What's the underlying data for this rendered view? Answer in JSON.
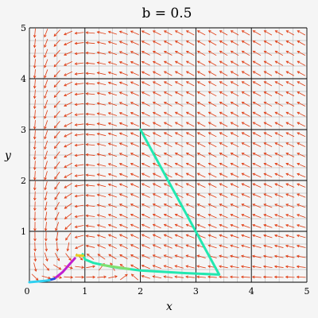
{
  "chart_data": {
    "type": "line",
    "title": "b = 0.5",
    "xlabel": "x",
    "ylabel": "y",
    "xlim": [
      0,
      5
    ],
    "ylim": [
      0,
      5
    ],
    "grid": true,
    "x_ticks": [
      "0",
      "1",
      "2",
      "3",
      "4",
      "5"
    ],
    "y_ticks": [
      "1",
      "2",
      "3",
      "4",
      "5"
    ],
    "b": 0.5,
    "field_color": "#e03a10",
    "grid_major_color": "#000000",
    "grid_minor_color": "#aaaaaa",
    "series": [
      {
        "color": "#22e8b0",
        "x": [
          2.0,
          3.42,
          2.8,
          2.0,
          1.5,
          1.15,
          1.0,
          0.98,
          0.96
        ],
        "y": [
          3.0,
          0.15,
          0.18,
          0.23,
          0.3,
          0.38,
          0.45,
          0.5,
          0.55
        ]
      },
      {
        "color": "#7fe070",
        "x": [
          1.3,
          1.8
        ],
        "y": [
          0.34,
          0.26
        ]
      },
      {
        "color": "#e8d020",
        "x": [
          0.85,
          0.97
        ],
        "y": [
          0.53,
          0.52
        ]
      },
      {
        "color": "#c020d0",
        "x": [
          0.45,
          0.6,
          0.72,
          0.82
        ],
        "y": [
          0.07,
          0.2,
          0.35,
          0.47
        ]
      },
      {
        "color": "#2050e0",
        "x": [
          0.35,
          0.45
        ],
        "y": [
          0.04,
          0.07
        ]
      },
      {
        "color": "#30d0f0",
        "x": [
          0.0,
          0.1,
          0.2,
          0.3,
          0.36
        ],
        "y": [
          0.0,
          0.01,
          0.02,
          0.03,
          0.04
        ]
      }
    ]
  }
}
